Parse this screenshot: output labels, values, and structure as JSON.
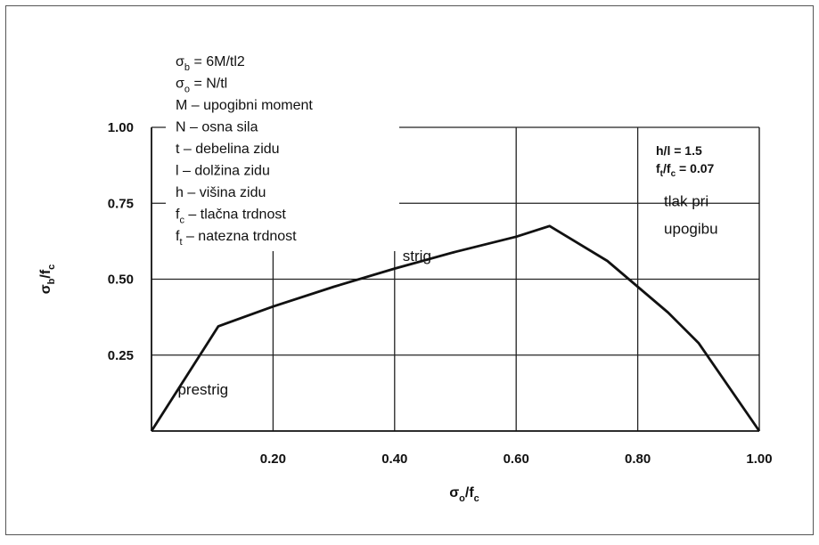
{
  "chart_data": {
    "type": "line",
    "xlim": [
      0,
      1.0
    ],
    "ylim": [
      0,
      1.0
    ],
    "grid": true,
    "x_ticks": [
      0.2,
      0.4,
      0.6,
      0.8,
      1.0
    ],
    "x_tick_labels": [
      "0.20",
      "0.40",
      "0.60",
      "0.80",
      "1.00"
    ],
    "y_ticks": [
      0.25,
      0.5,
      0.75,
      1.0
    ],
    "y_tick_labels": [
      "0.25",
      "0.50",
      "0.75",
      "1.00"
    ],
    "xlabel": {
      "main": "σ",
      "sub": "o",
      "slash": "/f",
      "sub2": "c"
    },
    "ylabel": {
      "main": "σ",
      "sub": "b",
      "slash": "/f",
      "sub2": "c"
    },
    "series": [
      {
        "x": [
          0.0,
          0.11,
          0.2,
          0.3,
          0.4,
          0.5,
          0.6,
          0.655,
          0.75,
          0.85,
          0.9,
          1.0
        ],
        "y": [
          0.0,
          0.345,
          0.41,
          0.475,
          0.535,
          0.59,
          0.64,
          0.675,
          0.56,
          0.39,
          0.29,
          0.0
        ]
      }
    ],
    "legend": {
      "items": [
        {
          "main": "σ",
          "sub": "b",
          "rest": " = 6M/tl2"
        },
        {
          "main": "σ",
          "sub": "o",
          "rest": " = N/tl"
        },
        {
          "main": "M",
          "sub": "",
          "rest": " – upogibni moment"
        },
        {
          "main": "N",
          "sub": "",
          "rest": " – osna sila"
        },
        {
          "main": "t",
          "sub": "",
          "rest": " – debelina zidu"
        },
        {
          "main": "l",
          "sub": "",
          "rest": " – dolžina zidu"
        },
        {
          "main": "h",
          "sub": "",
          "rest": " – višina zidu"
        },
        {
          "main": "f",
          "sub": "c",
          "rest": " – tlačna trdnost"
        },
        {
          "main": "f",
          "sub": "t",
          "rest": " – natezna trdnost"
        }
      ]
    },
    "params": [
      {
        "main": "h/l = 1.5",
        "sub": "",
        "rest": ""
      },
      {
        "main": "f",
        "sub": "t",
        "rest": "/f",
        "sub2": "c",
        "rest2": " = 0.07"
      }
    ],
    "regions": [
      {
        "label": "prestrig",
        "x": 0.03,
        "y": 0.12
      },
      {
        "label": "strig",
        "x": 0.4,
        "y": 0.56
      },
      {
        "label": "tlak pri",
        "x": 0.83,
        "y": 0.74
      },
      {
        "label": "upogibu",
        "x": 0.83,
        "y": 0.65
      }
    ]
  }
}
